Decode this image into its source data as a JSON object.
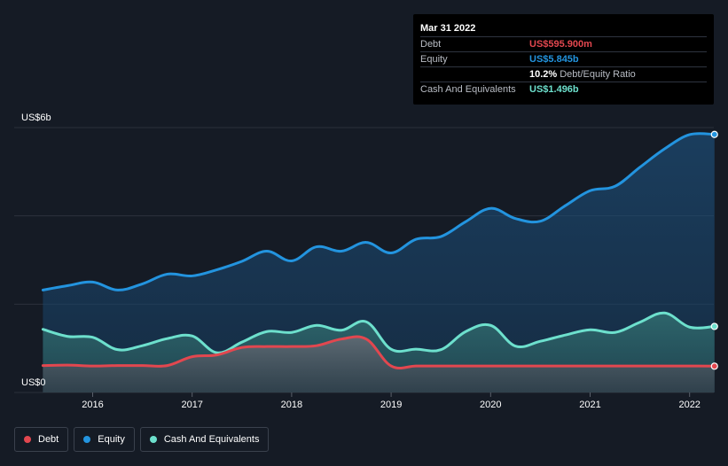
{
  "tooltip": {
    "date": "Mar 31 2022",
    "rows": [
      {
        "label": "Debt",
        "value": "US$595.900m",
        "color": "#e2474f"
      },
      {
        "label": "Equity",
        "value": "US$5.845b",
        "color": "#2394df"
      },
      {
        "label": "",
        "value": "10.2%",
        "suffix": "Debt/Equity Ratio",
        "color": "#ffffff"
      },
      {
        "label": "Cash And Equivalents",
        "value": "US$1.496b",
        "color": "#6de0cd"
      }
    ]
  },
  "legend": {
    "items": [
      {
        "label": "Debt",
        "color": "#e2474f"
      },
      {
        "label": "Equity",
        "color": "#2394df"
      },
      {
        "label": "Cash And Equivalents",
        "color": "#6de0cd"
      }
    ]
  },
  "chart_data": {
    "type": "area",
    "x_ticks": [
      2016,
      2017,
      2018,
      2019,
      2020,
      2021,
      2022
    ],
    "y_tick_labels": [
      "US$0",
      "US$6b"
    ],
    "ylim": [
      0,
      6
    ],
    "xlim": [
      2015.5,
      2022.25
    ],
    "y_gridlines": [
      0,
      2,
      4,
      6
    ],
    "series": [
      {
        "name": "Equity",
        "color": "#2394df",
        "points": [
          [
            2015.5,
            2.32
          ],
          [
            2015.75,
            2.42
          ],
          [
            2016.0,
            2.5
          ],
          [
            2016.25,
            2.32
          ],
          [
            2016.5,
            2.46
          ],
          [
            2016.75,
            2.68
          ],
          [
            2017.0,
            2.64
          ],
          [
            2017.25,
            2.78
          ],
          [
            2017.5,
            2.97
          ],
          [
            2017.75,
            3.2
          ],
          [
            2018.0,
            2.98
          ],
          [
            2018.25,
            3.3
          ],
          [
            2018.5,
            3.2
          ],
          [
            2018.75,
            3.4
          ],
          [
            2019.0,
            3.16
          ],
          [
            2019.25,
            3.47
          ],
          [
            2019.5,
            3.53
          ],
          [
            2019.75,
            3.87
          ],
          [
            2020.0,
            4.17
          ],
          [
            2020.25,
            3.94
          ],
          [
            2020.5,
            3.88
          ],
          [
            2020.75,
            4.23
          ],
          [
            2021.0,
            4.57
          ],
          [
            2021.25,
            4.67
          ],
          [
            2021.5,
            5.1
          ],
          [
            2021.75,
            5.52
          ],
          [
            2022.0,
            5.84
          ],
          [
            2022.25,
            5.845
          ]
        ]
      },
      {
        "name": "Cash And Equivalents",
        "color": "#6de0cd",
        "points": [
          [
            2015.5,
            1.43
          ],
          [
            2015.75,
            1.27
          ],
          [
            2016.0,
            1.25
          ],
          [
            2016.25,
            0.97
          ],
          [
            2016.5,
            1.06
          ],
          [
            2016.75,
            1.22
          ],
          [
            2017.0,
            1.28
          ],
          [
            2017.25,
            0.9
          ],
          [
            2017.5,
            1.14
          ],
          [
            2017.75,
            1.38
          ],
          [
            2018.0,
            1.36
          ],
          [
            2018.25,
            1.52
          ],
          [
            2018.5,
            1.41
          ],
          [
            2018.75,
            1.6
          ],
          [
            2019.0,
            0.98
          ],
          [
            2019.25,
            0.98
          ],
          [
            2019.5,
            0.97
          ],
          [
            2019.75,
            1.38
          ],
          [
            2020.0,
            1.52
          ],
          [
            2020.25,
            1.05
          ],
          [
            2020.5,
            1.16
          ],
          [
            2020.75,
            1.3
          ],
          [
            2021.0,
            1.42
          ],
          [
            2021.25,
            1.36
          ],
          [
            2021.5,
            1.59
          ],
          [
            2021.75,
            1.8
          ],
          [
            2022.0,
            1.48
          ],
          [
            2022.25,
            1.496
          ]
        ]
      },
      {
        "name": "Debt",
        "color": "#e2474f",
        "points": [
          [
            2015.5,
            0.61
          ],
          [
            2015.75,
            0.62
          ],
          [
            2016.0,
            0.6
          ],
          [
            2016.25,
            0.61
          ],
          [
            2016.5,
            0.61
          ],
          [
            2016.75,
            0.61
          ],
          [
            2017.0,
            0.81
          ],
          [
            2017.25,
            0.85
          ],
          [
            2017.5,
            1.02
          ],
          [
            2017.75,
            1.04
          ],
          [
            2018.0,
            1.04
          ],
          [
            2018.25,
            1.06
          ],
          [
            2018.5,
            1.21
          ],
          [
            2018.75,
            1.21
          ],
          [
            2019.0,
            0.6
          ],
          [
            2019.25,
            0.6
          ],
          [
            2019.5,
            0.6
          ],
          [
            2019.75,
            0.6
          ],
          [
            2020.0,
            0.6
          ],
          [
            2020.25,
            0.6
          ],
          [
            2020.5,
            0.6
          ],
          [
            2020.75,
            0.6
          ],
          [
            2021.0,
            0.6
          ],
          [
            2021.25,
            0.6
          ],
          [
            2021.5,
            0.6
          ],
          [
            2021.75,
            0.6
          ],
          [
            2022.0,
            0.6
          ],
          [
            2022.25,
            0.596
          ]
        ]
      }
    ]
  }
}
